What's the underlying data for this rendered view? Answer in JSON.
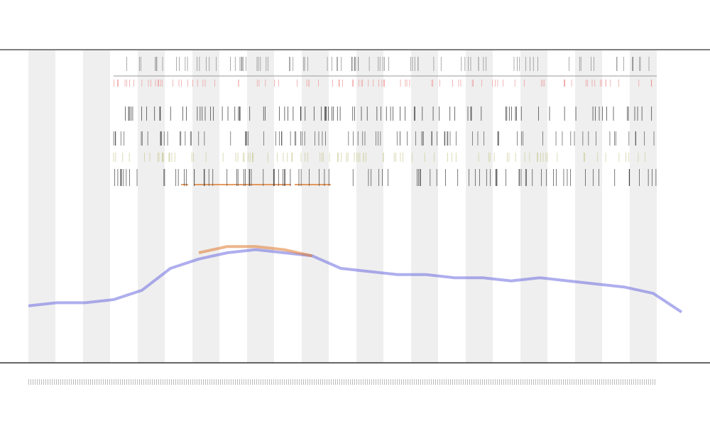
{
  "chart_data": {
    "type": "line",
    "categories": [
      null,
      null,
      null,
      null,
      null,
      null,
      null,
      null,
      null,
      null,
      null,
      null,
      null,
      null,
      null,
      null,
      null,
      null,
      null,
      null,
      null,
      null,
      null,
      null
    ],
    "ylim": [
      0,
      100
    ],
    "series": [
      {
        "color": "#6b6be0",
        "values": [
          18,
          19,
          19,
          20,
          23,
          30,
          33,
          35,
          36,
          35,
          34,
          30,
          29,
          28,
          28,
          27,
          27,
          26,
          27,
          26,
          25,
          24,
          22,
          16
        ]
      },
      {
        "color": "#e07a2e",
        "values": [
          null,
          null,
          null,
          null,
          null,
          null,
          35,
          37,
          37,
          36,
          34,
          null,
          null,
          null,
          null,
          null,
          null,
          null,
          null,
          null,
          null,
          null,
          null,
          null
        ]
      }
    ]
  }
}
